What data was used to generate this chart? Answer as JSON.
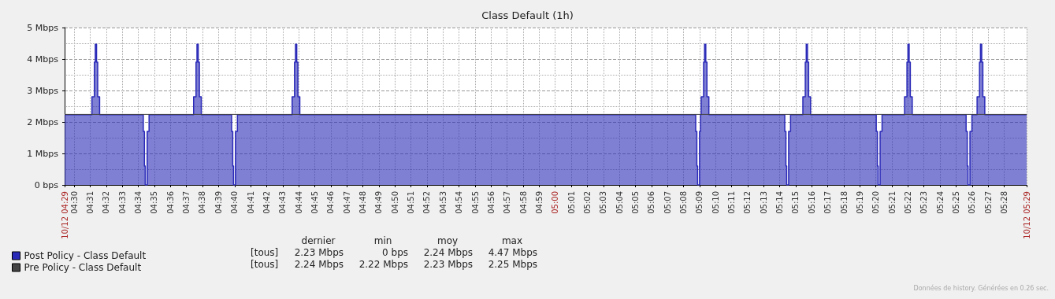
{
  "chart_data": {
    "type": "area",
    "title": "Class Default (1h)",
    "series": [
      {
        "name": "Post Policy - Class Default",
        "type": "step",
        "color": "#2a2ab8",
        "x": [
          4.49,
          4.5184,
          4.5209,
          4.5219,
          4.5232,
          4.5244,
          4.5264,
          4.5718,
          4.573,
          4.5738,
          4.5758,
          4.5778,
          4.6241,
          4.6266,
          4.6276,
          4.6289,
          4.6301,
          4.6321,
          4.6636,
          4.6648,
          4.6656,
          4.6676,
          4.6696,
          4.7265,
          4.729,
          4.73,
          4.7313,
          4.7325,
          4.7345,
          5.146,
          5.1472,
          5.148,
          5.15,
          5.151,
          5.1517,
          5.1542,
          5.1552,
          5.1565,
          5.1577,
          5.1597,
          5.2386,
          5.2398,
          5.2406,
          5.2426,
          5.2446,
          5.2574,
          5.2599,
          5.2609,
          5.2622,
          5.2634,
          5.2654,
          5.3337,
          5.3349,
          5.3357,
          5.3377,
          5.3397,
          5.3631,
          5.3656,
          5.3666,
          5.3679,
          5.3691,
          5.3711,
          5.4271,
          5.4283,
          5.4291,
          5.4311,
          5.4331,
          5.4385,
          5.441,
          5.442,
          5.4433,
          5.4445,
          5.4465,
          5.49
        ],
        "values": [
          2.23,
          2.8,
          3.9,
          4.47,
          3.9,
          2.8,
          2.23,
          1.7,
          0.6,
          0,
          1.7,
          2.23,
          2.8,
          3.9,
          4.47,
          3.9,
          2.8,
          2.23,
          1.7,
          0.6,
          0,
          1.7,
          2.23,
          2.8,
          3.9,
          4.47,
          3.9,
          2.8,
          2.23,
          1.7,
          0.6,
          0,
          1.7,
          2.23,
          2.8,
          3.9,
          4.47,
          3.9,
          2.8,
          2.23,
          1.7,
          0.6,
          0,
          1.7,
          2.23,
          2.8,
          3.9,
          4.47,
          3.9,
          2.8,
          2.23,
          1.7,
          0.6,
          0,
          1.7,
          2.23,
          2.8,
          3.9,
          4.47,
          3.9,
          2.8,
          2.23,
          1.7,
          0.6,
          0,
          1.7,
          2.23,
          2.8,
          3.9,
          4.47,
          3.9,
          2.8,
          2.23,
          2.23
        ]
      },
      {
        "name": "Pre Policy - Class Default",
        "type": "line",
        "color": "#444444",
        "x": [
          4.49,
          5.49
        ],
        "values": [
          2.24,
          2.24
        ]
      }
    ],
    "xlim": [
      4.49,
      5.49
    ],
    "xticks": [
      {
        "value": 4.49,
        "label": "10/12 04:29"
      },
      {
        "value": 4.5,
        "label": "04:30"
      },
      {
        "value": 4.5167,
        "label": "04:31"
      },
      {
        "value": 4.5333,
        "label": "04:32"
      },
      {
        "value": 4.55,
        "label": "04:33"
      },
      {
        "value": 4.5667,
        "label": "04:34"
      },
      {
        "value": 4.5833,
        "label": "04:35"
      },
      {
        "value": 4.6,
        "label": "04:36"
      },
      {
        "value": 4.6167,
        "label": "04:37"
      },
      {
        "value": 4.6333,
        "label": "04:38"
      },
      {
        "value": 4.65,
        "label": "04:39"
      },
      {
        "value": 4.6667,
        "label": "04:40"
      },
      {
        "value": 4.6833,
        "label": "04:41"
      },
      {
        "value": 4.7,
        "label": "04:42"
      },
      {
        "value": 4.7167,
        "label": "04:43"
      },
      {
        "value": 4.7333,
        "label": "04:44"
      },
      {
        "value": 4.75,
        "label": "04:45"
      },
      {
        "value": 4.7667,
        "label": "04:46"
      },
      {
        "value": 4.7833,
        "label": "04:47"
      },
      {
        "value": 4.8,
        "label": "04:48"
      },
      {
        "value": 4.8167,
        "label": "04:49"
      },
      {
        "value": 4.8333,
        "label": "04:50"
      },
      {
        "value": 4.85,
        "label": "04:51"
      },
      {
        "value": 4.8667,
        "label": "04:52"
      },
      {
        "value": 4.8833,
        "label": "04:53"
      },
      {
        "value": 4.9,
        "label": "04:54"
      },
      {
        "value": 4.9167,
        "label": "04:55"
      },
      {
        "value": 4.9333,
        "label": "04:56"
      },
      {
        "value": 4.95,
        "label": "04:57"
      },
      {
        "value": 4.9667,
        "label": "04:58"
      },
      {
        "value": 4.9833,
        "label": "04:59"
      },
      {
        "value": 5,
        "label": "05:00"
      },
      {
        "value": 5.0167,
        "label": "05:01"
      },
      {
        "value": 5.0333,
        "label": "05:02"
      },
      {
        "value": 5.05,
        "label": "05:03"
      },
      {
        "value": 5.0667,
        "label": "05:04"
      },
      {
        "value": 5.0833,
        "label": "05:05"
      },
      {
        "value": 5.1,
        "label": "05:06"
      },
      {
        "value": 5.1167,
        "label": "05:07"
      },
      {
        "value": 5.1333,
        "label": "05:08"
      },
      {
        "value": 5.15,
        "label": "05:09"
      },
      {
        "value": 5.1667,
        "label": "05:10"
      },
      {
        "value": 5.1833,
        "label": "05:11"
      },
      {
        "value": 5.2,
        "label": "05:12"
      },
      {
        "value": 5.2167,
        "label": "05:13"
      },
      {
        "value": 5.2333,
        "label": "05:14"
      },
      {
        "value": 5.25,
        "label": "05:15"
      },
      {
        "value": 5.2667,
        "label": "05:16"
      },
      {
        "value": 5.2833,
        "label": "05:17"
      },
      {
        "value": 5.3,
        "label": "05:18"
      },
      {
        "value": 5.3167,
        "label": "05:19"
      },
      {
        "value": 5.3333,
        "label": "05:20"
      },
      {
        "value": 5.35,
        "label": "05:21"
      },
      {
        "value": 5.3667,
        "label": "05:22"
      },
      {
        "value": 5.3833,
        "label": "05:23"
      },
      {
        "value": 5.4,
        "label": "05:24"
      },
      {
        "value": 5.4167,
        "label": "05:25"
      },
      {
        "value": 5.4333,
        "label": "05:26"
      },
      {
        "value": 5.45,
        "label": "05:27"
      },
      {
        "value": 5.4667,
        "label": "05:28"
      },
      {
        "value": 5.49,
        "label": "10/12 05:29"
      }
    ],
    "ylim": [
      0,
      5
    ],
    "yticks": [
      {
        "value": 0,
        "label": "0 bps"
      },
      {
        "value": 1,
        "label": "1 Mbps"
      },
      {
        "value": 2,
        "label": "2 Mbps"
      },
      {
        "value": 3,
        "label": "3 Mbps"
      },
      {
        "value": 4,
        "label": "4 Mbps"
      },
      {
        "value": 5,
        "label": "5 Mbps"
      }
    ],
    "grid": true,
    "legend": "bottom left",
    "line_style": "solid",
    "marker": "none",
    "annotations": [
      "dernier",
      "min",
      "moy",
      "max",
      "[tous]",
      "2.23 Mbps",
      "0 bps",
      "2.24 Mbps",
      "4.47 Mbps",
      "[tous]",
      "2.24 Mbps",
      "2.22 Mbps",
      "2.23 Mbps",
      "2.25 Mbps",
      "Données de history. Générées en 0.26 sec."
    ]
  }
}
